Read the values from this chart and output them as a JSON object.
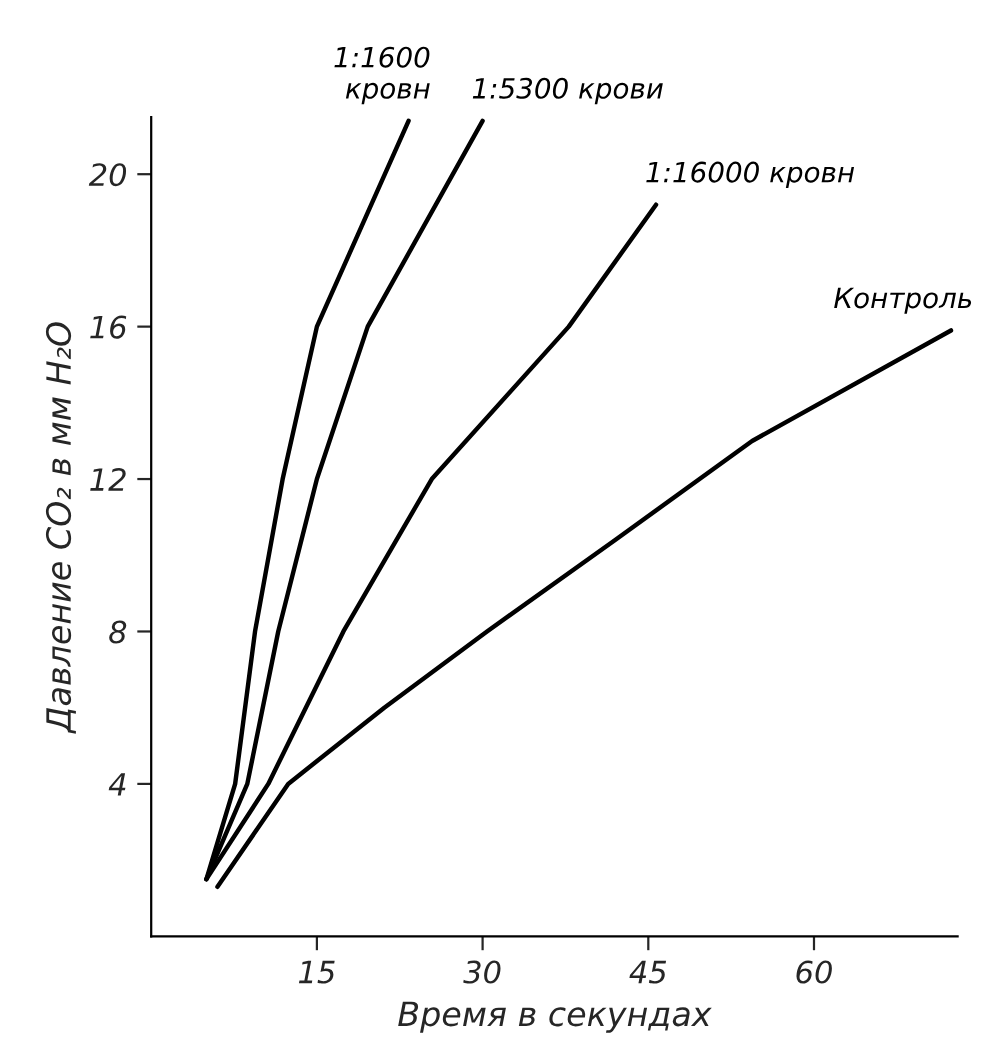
{
  "chart_data": {
    "type": "line",
    "xlabel": "Время в секундах",
    "ylabel": "Давление CO₂ в мм H₂O",
    "xlim": [
      0,
      73
    ],
    "ylim": [
      0,
      21.5
    ],
    "xticks": [
      15,
      30,
      45,
      60
    ],
    "yticks": [
      4,
      8,
      12,
      16,
      20
    ],
    "grid": false,
    "legend": false,
    "marker": "none",
    "line_style": "solid",
    "series": [
      {
        "name": "1:1600\nкровн",
        "color": "#000000",
        "x": [
          5,
          7.6,
          9.4,
          11.9,
          15,
          23.3
        ],
        "values": [
          1.5,
          4,
          8,
          12,
          16,
          21.4
        ]
      },
      {
        "name": "1:5300 крови",
        "color": "#000000",
        "x": [
          5,
          8.7,
          11.5,
          15,
          19.6,
          30
        ],
        "values": [
          1.5,
          4,
          8,
          12,
          16,
          21.4
        ]
      },
      {
        "name": "1:16000 кровн",
        "color": "#000000",
        "x": [
          5,
          10.6,
          17.4,
          25.4,
          37.8,
          45.7
        ],
        "values": [
          1.5,
          4,
          8,
          12,
          16,
          19.2
        ]
      },
      {
        "name": "Контроль",
        "color": "#000000",
        "x": [
          6,
          12.4,
          21.1,
          30.4,
          42,
          54.4,
          72.4
        ],
        "values": [
          1.3,
          4,
          6,
          8,
          10.4,
          13,
          15.9
        ]
      }
    ]
  }
}
